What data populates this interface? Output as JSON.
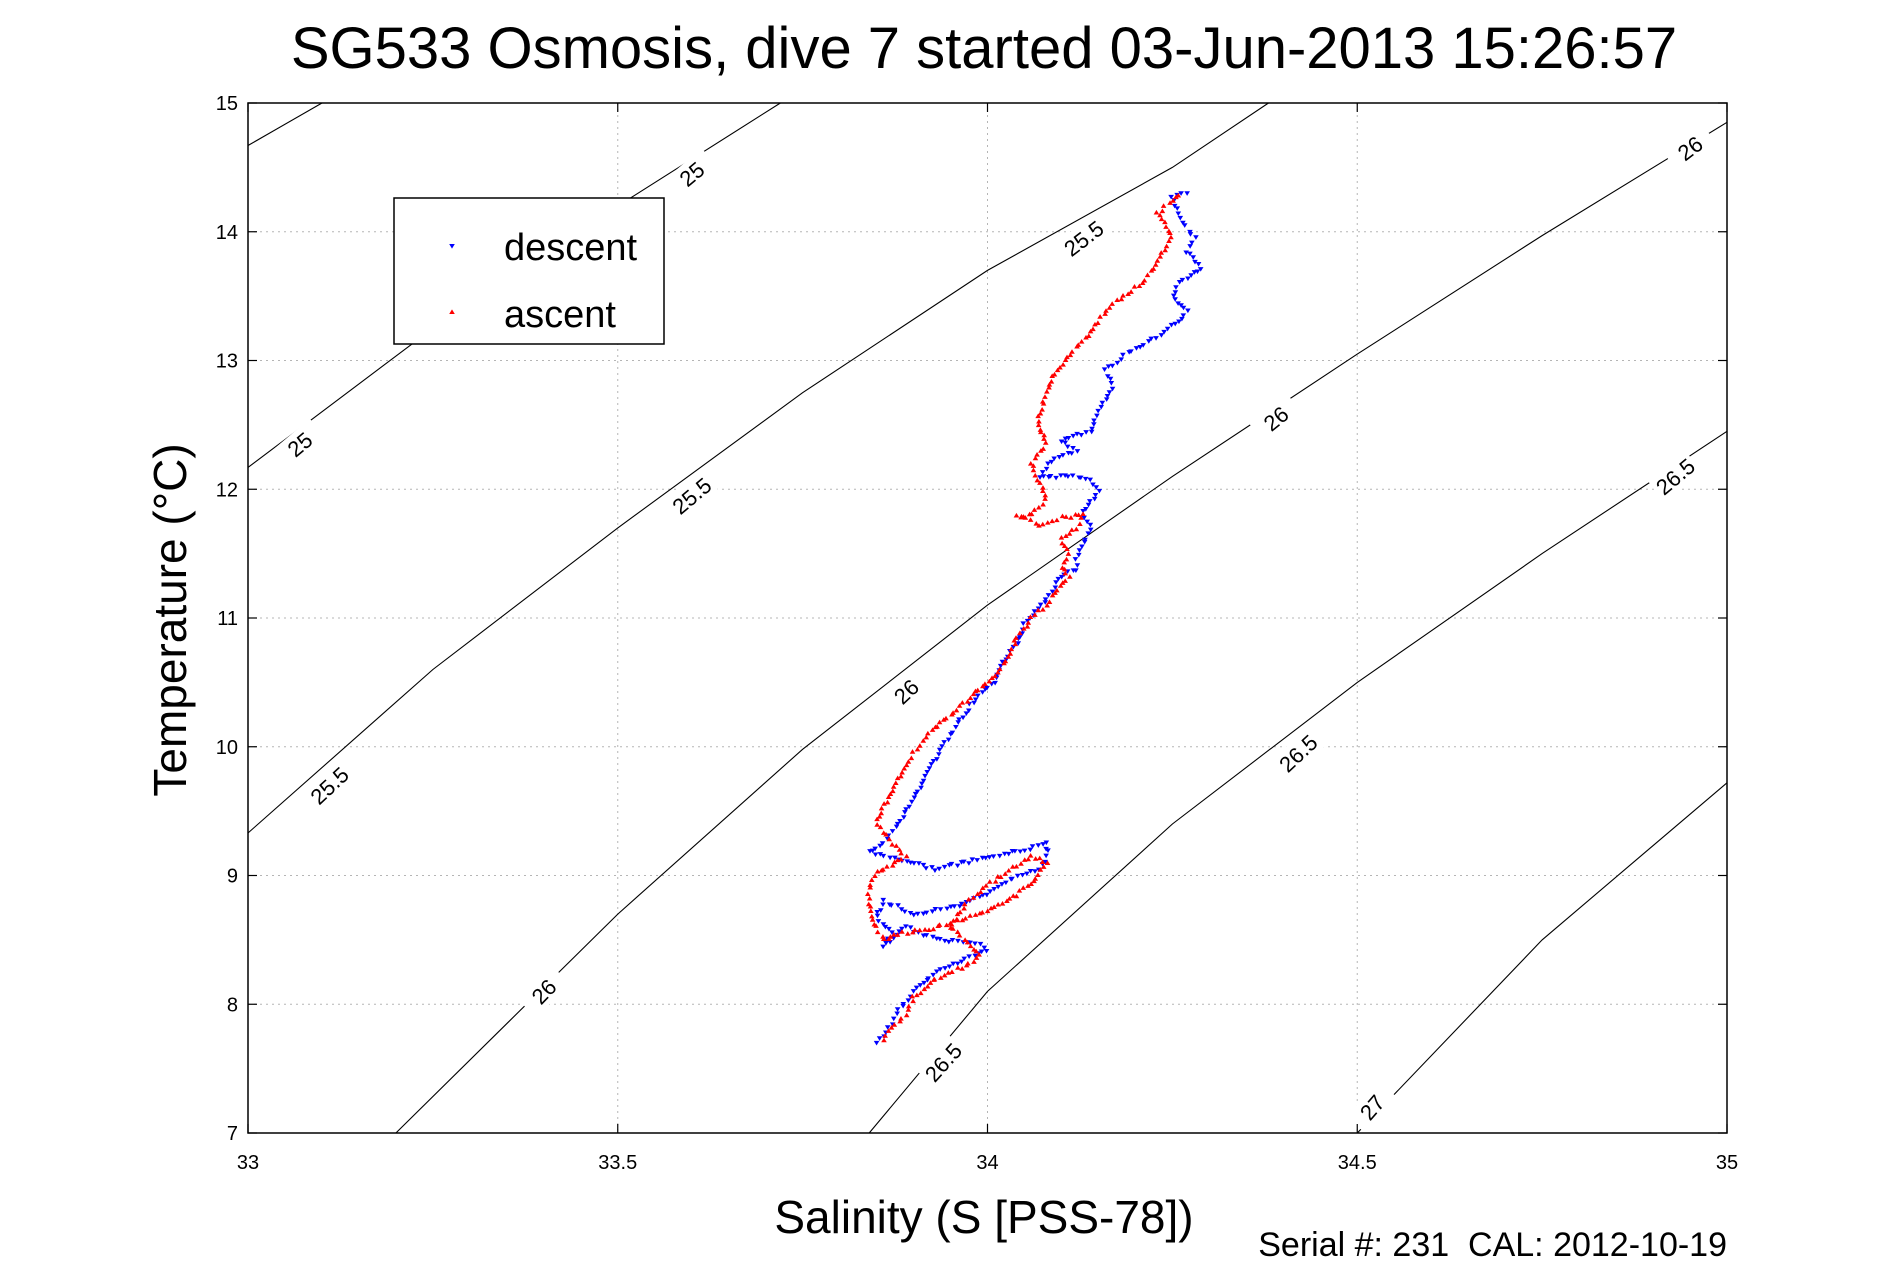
{
  "chart_data": {
    "type": "scatter",
    "title": "SG533 Osmosis, dive 7 started 03-Jun-2013 15:26:57",
    "xlabel": "Salinity (S [PSS-78])",
    "ylabel": "Temperature (°C)",
    "xlim": [
      33,
      35
    ],
    "ylim": [
      7,
      15
    ],
    "xticks": [
      33,
      33.5,
      34,
      34.5,
      35
    ],
    "xtick_labels": [
      "33",
      "33.5",
      "34",
      "34.5",
      "35"
    ],
    "yticks": [
      7,
      8,
      9,
      10,
      11,
      12,
      13,
      14,
      15
    ],
    "ytick_labels": [
      "7",
      "8",
      "9",
      "10",
      "11",
      "12",
      "13",
      "14",
      "15"
    ],
    "grid": true,
    "legend_position": "top-left",
    "footer": "Serial #: 231  CAL: 2012-10-19",
    "contours": [
      {
        "level": "25",
        "points": [
          [
            33.0,
            14.67
          ],
          [
            33.1,
            15.0
          ]
        ]
      },
      {
        "level": "25",
        "points": [
          [
            33.0,
            12.17
          ],
          [
            33.25,
            13.25
          ],
          [
            33.5,
            14.2
          ],
          [
            33.72,
            15.0
          ]
        ]
      },
      {
        "level": "25.5",
        "points": [
          [
            33.0,
            9.33
          ],
          [
            33.25,
            10.6
          ],
          [
            33.5,
            11.7
          ],
          [
            33.75,
            12.75
          ],
          [
            34.0,
            13.7
          ],
          [
            34.25,
            14.5
          ],
          [
            34.38,
            15.0
          ]
        ]
      },
      {
        "level": "26",
        "points": [
          [
            33.2,
            7.0
          ],
          [
            33.5,
            8.7
          ],
          [
            33.75,
            9.98
          ],
          [
            34.0,
            11.1
          ],
          [
            34.25,
            12.1
          ],
          [
            34.5,
            13.05
          ],
          [
            34.75,
            13.97
          ],
          [
            35.0,
            14.85
          ]
        ]
      },
      {
        "level": "26.5",
        "points": [
          [
            33.84,
            7.0
          ],
          [
            34.0,
            8.1
          ],
          [
            34.25,
            9.4
          ],
          [
            34.5,
            10.5
          ],
          [
            34.75,
            11.5
          ],
          [
            35.0,
            12.45
          ]
        ]
      },
      {
        "level": "27",
        "points": [
          [
            34.5,
            7.0
          ],
          [
            34.75,
            8.5
          ],
          [
            35.0,
            9.72
          ]
        ]
      }
    ],
    "contour_labels": [
      {
        "text": "25",
        "x": 33.6,
        "y": 14.45,
        "angle": -40
      },
      {
        "text": "25",
        "x": 33.07,
        "y": 12.35,
        "angle": -40
      },
      {
        "text": "25.5",
        "x": 34.13,
        "y": 13.95,
        "angle": -37
      },
      {
        "text": "25.5",
        "x": 33.6,
        "y": 11.95,
        "angle": -40
      },
      {
        "text": "25.5",
        "x": 33.11,
        "y": 9.7,
        "angle": -43
      },
      {
        "text": "26",
        "x": 34.95,
        "y": 14.65,
        "angle": -37
      },
      {
        "text": "26",
        "x": 34.39,
        "y": 12.55,
        "angle": -39
      },
      {
        "text": "26",
        "x": 33.89,
        "y": 10.43,
        "angle": -43
      },
      {
        "text": "26",
        "x": 33.4,
        "y": 8.1,
        "angle": -46
      },
      {
        "text": "26.5",
        "x": 34.93,
        "y": 12.1,
        "angle": -40
      },
      {
        "text": "26.5",
        "x": 34.42,
        "y": 9.95,
        "angle": -43
      },
      {
        "text": "26.5",
        "x": 33.94,
        "y": 7.55,
        "angle": -48
      },
      {
        "text": "27",
        "x": 34.52,
        "y": 7.2,
        "angle": -49
      }
    ],
    "series": [
      {
        "name": "descent",
        "color": "#0000ff",
        "marker": "triangle-down",
        "path": [
          [
            34.27,
            14.3
          ],
          [
            34.25,
            14.28
          ],
          [
            34.26,
            14.1
          ],
          [
            34.28,
            13.95
          ],
          [
            34.27,
            13.85
          ],
          [
            34.29,
            13.72
          ],
          [
            34.26,
            13.6
          ],
          [
            34.25,
            13.5
          ],
          [
            34.27,
            13.38
          ],
          [
            34.24,
            13.22
          ],
          [
            34.19,
            13.06
          ],
          [
            34.16,
            12.92
          ],
          [
            34.17,
            12.78
          ],
          [
            34.15,
            12.6
          ],
          [
            34.14,
            12.45
          ],
          [
            34.1,
            12.38
          ],
          [
            34.12,
            12.3
          ],
          [
            34.09,
            12.25
          ],
          [
            34.07,
            12.1
          ],
          [
            34.11,
            12.1
          ],
          [
            34.14,
            12.08
          ],
          [
            34.15,
            11.98
          ],
          [
            34.13,
            11.82
          ],
          [
            34.14,
            11.68
          ],
          [
            34.13,
            11.58
          ],
          [
            34.12,
            11.46
          ],
          [
            34.12,
            11.38
          ],
          [
            34.1,
            11.33
          ],
          [
            34.08,
            11.15
          ],
          [
            34.05,
            10.95
          ],
          [
            34.04,
            10.8
          ],
          [
            34.02,
            10.65
          ],
          [
            34.01,
            10.5
          ],
          [
            33.98,
            10.35
          ],
          [
            33.96,
            10.18
          ],
          [
            33.94,
            10.0
          ],
          [
            33.92,
            9.8
          ],
          [
            33.9,
            9.6
          ],
          [
            33.88,
            9.4
          ],
          [
            33.86,
            9.25
          ],
          [
            33.84,
            9.18
          ],
          [
            33.86,
            9.15
          ],
          [
            33.88,
            9.13
          ],
          [
            33.93,
            9.05
          ],
          [
            33.97,
            9.1
          ],
          [
            34.01,
            9.15
          ],
          [
            34.05,
            9.2
          ],
          [
            34.08,
            9.25
          ],
          [
            34.08,
            9.15
          ],
          [
            34.07,
            9.05
          ],
          [
            34.04,
            9.0
          ],
          [
            34.0,
            8.85
          ],
          [
            33.95,
            8.75
          ],
          [
            33.9,
            8.7
          ],
          [
            33.86,
            8.8
          ],
          [
            33.85,
            8.68
          ],
          [
            33.87,
            8.55
          ],
          [
            33.86,
            8.45
          ],
          [
            33.89,
            8.6
          ],
          [
            33.93,
            8.5
          ],
          [
            33.99,
            8.48
          ],
          [
            34.0,
            8.42
          ],
          [
            33.97,
            8.35
          ],
          [
            33.93,
            8.25
          ],
          [
            33.9,
            8.1
          ],
          [
            33.88,
            7.95
          ],
          [
            33.87,
            7.85
          ],
          [
            33.86,
            7.75
          ],
          [
            33.85,
            7.7
          ]
        ]
      },
      {
        "name": "ascent",
        "color": "#ff0000",
        "marker": "triangle-up",
        "path": [
          [
            34.26,
            14.28
          ],
          [
            34.23,
            14.15
          ],
          [
            34.25,
            13.95
          ],
          [
            34.23,
            13.78
          ],
          [
            34.21,
            13.6
          ],
          [
            34.17,
            13.45
          ],
          [
            34.15,
            13.3
          ],
          [
            34.12,
            13.1
          ],
          [
            34.09,
            12.9
          ],
          [
            34.08,
            12.75
          ],
          [
            34.07,
            12.6
          ],
          [
            34.07,
            12.5
          ],
          [
            34.08,
            12.35
          ],
          [
            34.06,
            12.2
          ],
          [
            34.07,
            12.05
          ],
          [
            34.08,
            11.95
          ],
          [
            34.07,
            11.85
          ],
          [
            34.05,
            11.78
          ],
          [
            34.04,
            11.8
          ],
          [
            34.07,
            11.72
          ],
          [
            34.1,
            11.78
          ],
          [
            34.13,
            11.8
          ],
          [
            34.12,
            11.7
          ],
          [
            34.1,
            11.62
          ],
          [
            34.11,
            11.5
          ],
          [
            34.1,
            11.4
          ],
          [
            34.11,
            11.32
          ],
          [
            34.09,
            11.2
          ],
          [
            34.08,
            11.1
          ],
          [
            34.06,
            11.0
          ],
          [
            34.04,
            10.85
          ],
          [
            34.03,
            10.7
          ],
          [
            34.01,
            10.55
          ],
          [
            33.98,
            10.4
          ],
          [
            33.95,
            10.25
          ],
          [
            33.92,
            10.1
          ],
          [
            33.9,
            9.95
          ],
          [
            33.88,
            9.75
          ],
          [
            33.86,
            9.55
          ],
          [
            33.85,
            9.4
          ],
          [
            33.87,
            9.25
          ],
          [
            33.89,
            9.15
          ],
          [
            33.87,
            9.08
          ],
          [
            33.85,
            9.02
          ],
          [
            33.84,
            8.9
          ],
          [
            33.84,
            8.75
          ],
          [
            33.85,
            8.6
          ],
          [
            33.86,
            8.5
          ],
          [
            33.88,
            8.55
          ],
          [
            33.92,
            8.58
          ],
          [
            33.96,
            8.65
          ],
          [
            34.0,
            8.72
          ],
          [
            34.04,
            8.85
          ],
          [
            34.07,
            9.0
          ],
          [
            34.08,
            9.1
          ],
          [
            34.06,
            9.15
          ],
          [
            34.04,
            9.08
          ],
          [
            34.0,
            8.92
          ],
          [
            33.97,
            8.78
          ],
          [
            33.95,
            8.6
          ],
          [
            33.99,
            8.38
          ],
          [
            33.97,
            8.3
          ],
          [
            33.93,
            8.2
          ],
          [
            33.9,
            8.05
          ],
          [
            33.89,
            7.92
          ],
          [
            33.87,
            7.82
          ],
          [
            33.86,
            7.72
          ]
        ]
      }
    ]
  }
}
